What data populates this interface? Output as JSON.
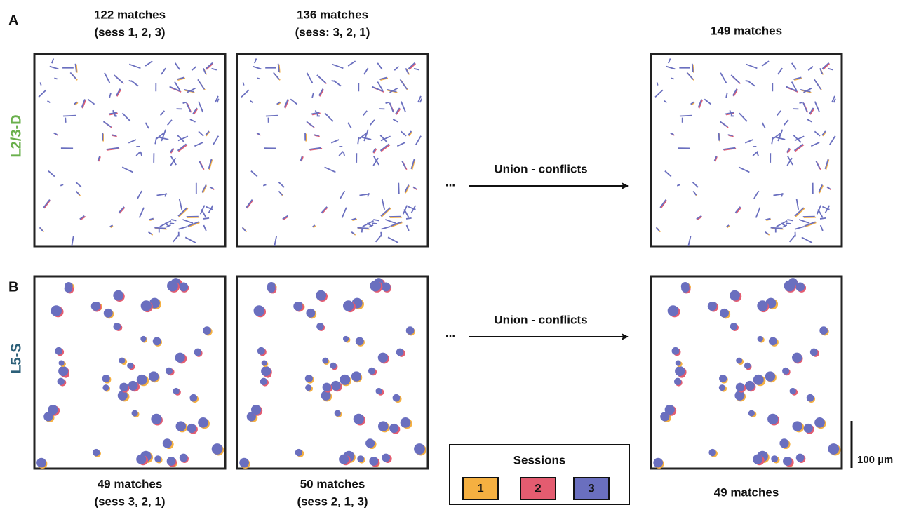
{
  "panels": [
    {
      "letter": "A",
      "row_label": "L2/3-D",
      "row_color": "#6ab04c",
      "style": "dendrites",
      "images": [
        {
          "caption": "122 matches",
          "subcaption": "(sess 1, 2, 3)"
        },
        {
          "caption": "136 matches",
          "subcaption": "(sess: 3, 2, 1)"
        },
        {
          "caption": "149 matches"
        }
      ],
      "ellipsis": "...",
      "arrow_label": "Union - conflicts"
    },
    {
      "letter": "B",
      "row_label": "L5-S",
      "row_color": "#2b5f78",
      "style": "somata",
      "images": [
        {
          "caption": "49 matches",
          "subcaption": "(sess 3, 2, 1)"
        },
        {
          "caption": "50 matches",
          "subcaption": "(sess 2, 1, 3)"
        },
        {
          "caption": "49 matches"
        }
      ],
      "ellipsis": "...",
      "arrow_label": "Union - conflicts"
    }
  ],
  "legend": {
    "title": "Sessions",
    "items": [
      {
        "label": "1",
        "color": "#f5b041"
      },
      {
        "label": "2",
        "color": "#e45c70"
      },
      {
        "label": "3",
        "color": "#6a6fbf"
      }
    ]
  },
  "scale_bar": "100 µm"
}
